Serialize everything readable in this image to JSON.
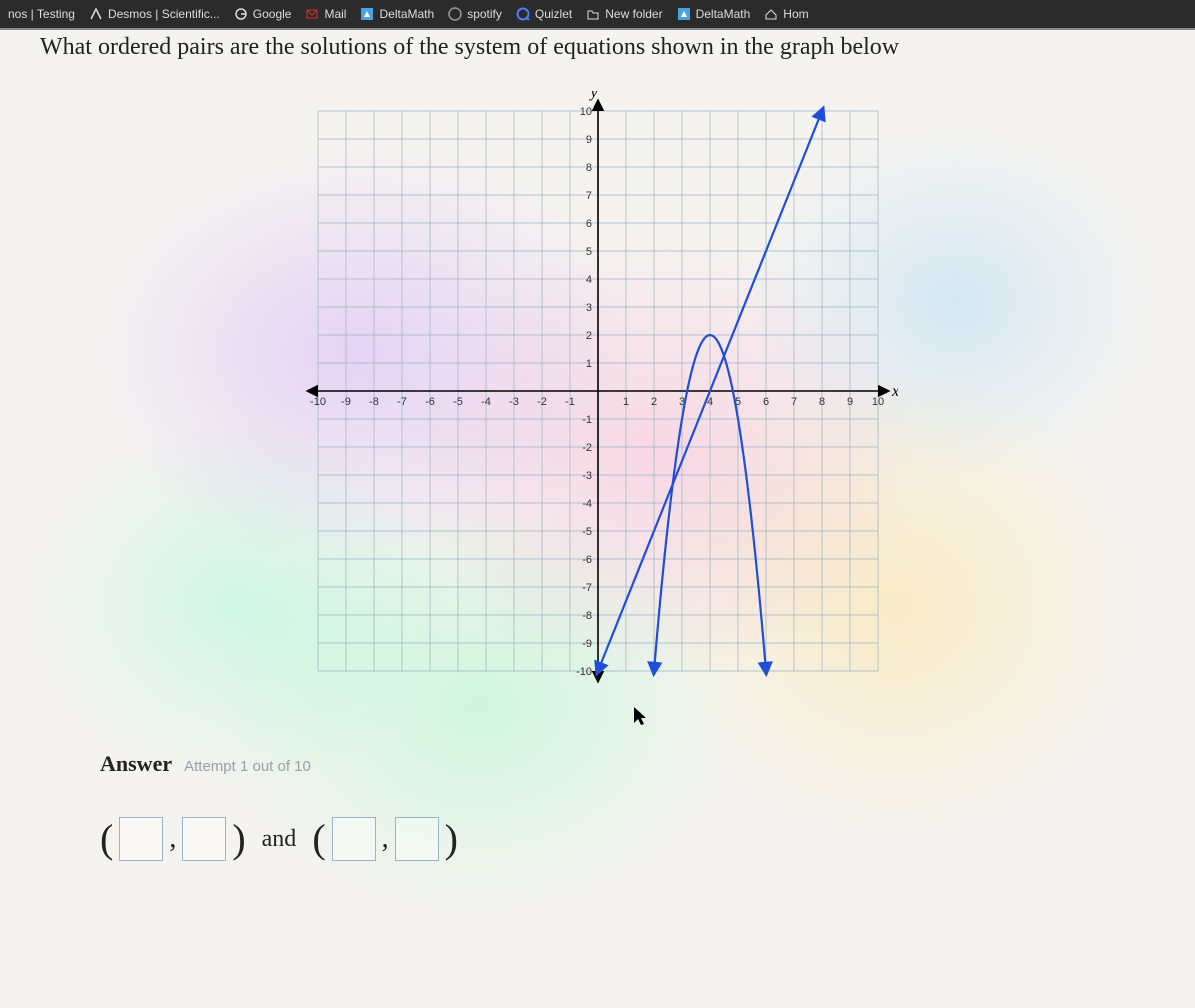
{
  "bookmarks": [
    {
      "label": "nos | Testing",
      "icon": "",
      "icon_color": "#ddd"
    },
    {
      "label": "Desmos | Scientific...",
      "icon": "desmos",
      "icon_color": "#ddd"
    },
    {
      "label": "Google",
      "icon": "google",
      "icon_color": "#ddd"
    },
    {
      "label": "Mail",
      "icon": "mail",
      "icon_color": "#ddd"
    },
    {
      "label": "DeltaMath",
      "icon": "delta",
      "icon_color": "#4aa3df"
    },
    {
      "label": "spotify",
      "icon": "spotify",
      "icon_color": "#999"
    },
    {
      "label": "Quizlet",
      "icon": "quizlet",
      "icon_color": "#4d7cfe"
    },
    {
      "label": "New folder",
      "icon": "folder",
      "icon_color": "#ddd"
    },
    {
      "label": "DeltaMath",
      "icon": "delta",
      "icon_color": "#4aa3df"
    },
    {
      "label": "Hom",
      "icon": "home",
      "icon_color": "#ddd"
    }
  ],
  "question_text": "What ordered pairs are the solutions of the system of equations shown in the graph below",
  "graph": {
    "type": "coordinate-plane",
    "xlim": [
      -10,
      10
    ],
    "ylim": [
      -10,
      10
    ],
    "tick_step": 1,
    "grid_color": "#9bb5c4",
    "axis_color": "#000000",
    "axis_label_x": "x",
    "axis_label_y": "y",
    "label_fontsize": 11,
    "axis_label_fontsize": 16,
    "background_color": "rgba(255,255,255,0)",
    "curves": [
      {
        "type": "line",
        "color": "#1f4fd6",
        "width": 2.2,
        "points": [
          [
            0,
            -10
          ],
          [
            8,
            10
          ]
        ],
        "arrow_start": true,
        "arrow_end": true
      },
      {
        "type": "parabola",
        "color": "#1f4fd6",
        "width": 2.2,
        "vertex": [
          4,
          2
        ],
        "a": -3,
        "x_range": [
          2,
          6
        ],
        "arrow_start": true,
        "arrow_end": true
      }
    ]
  },
  "answer": {
    "label": "Answer",
    "attempt_text": "Attempt 1 out of 10",
    "and_text": "and",
    "inputs": {
      "x1": "",
      "y1": "",
      "x2": "",
      "y2": ""
    }
  }
}
